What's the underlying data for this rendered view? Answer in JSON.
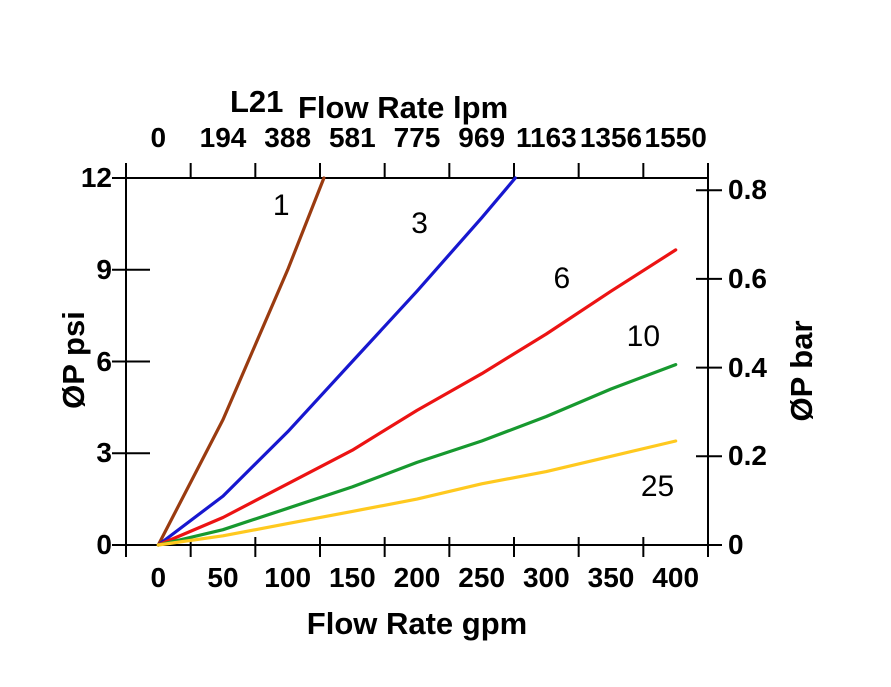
{
  "title": {
    "model": "L21"
  },
  "chart_data": {
    "type": "line",
    "top_axis": {
      "label": "Flow Rate lpm",
      "ticks": [
        "0",
        "194",
        "388",
        "581",
        "775",
        "969",
        "1163",
        "1356",
        "1550"
      ]
    },
    "bottom_axis": {
      "label": "Flow Rate gpm",
      "ticks": [
        "0",
        "50",
        "100",
        "150",
        "200",
        "250",
        "300",
        "350",
        "400"
      ],
      "range_gpm": [
        0,
        400
      ]
    },
    "left_axis": {
      "label": "ØP psi",
      "ticks": [
        "0",
        "3",
        "6",
        "9",
        "12"
      ],
      "range_psi": [
        0,
        12
      ]
    },
    "right_axis": {
      "label": "ØP bar",
      "ticks": [
        "0",
        "0.2",
        "0.4",
        "0.6",
        "0.8"
      ],
      "psi_per_bar": 14.5
    },
    "grid": false,
    "legend": "labels placed on curves",
    "series": [
      {
        "name": "1",
        "color": "#9a3b10",
        "label_at": {
          "gpm": 95,
          "psi": 11.1
        },
        "points_gpm_psi": [
          [
            0,
            0
          ],
          [
            50,
            4.1
          ],
          [
            100,
            9.0
          ],
          [
            128,
            12
          ]
        ]
      },
      {
        "name": "3",
        "color": "#1717cf",
        "label_at": {
          "gpm": 202,
          "psi": 10.5
        },
        "points_gpm_psi": [
          [
            0,
            0
          ],
          [
            50,
            1.6
          ],
          [
            100,
            3.7
          ],
          [
            150,
            6.0
          ],
          [
            200,
            8.3
          ],
          [
            250,
            10.7
          ],
          [
            276,
            12
          ]
        ]
      },
      {
        "name": "6",
        "color": "#ec1313",
        "label_at": {
          "gpm": 312,
          "psi": 8.7
        },
        "points_gpm_psi": [
          [
            0,
            0
          ],
          [
            50,
            0.9
          ],
          [
            100,
            2.0
          ],
          [
            150,
            3.1
          ],
          [
            200,
            4.4
          ],
          [
            250,
            5.6
          ],
          [
            300,
            6.9
          ],
          [
            350,
            8.3
          ],
          [
            400,
            9.65
          ]
        ]
      },
      {
        "name": "10",
        "color": "#17992f",
        "label_at": {
          "gpm": 375,
          "psi": 6.8
        },
        "points_gpm_psi": [
          [
            0,
            0
          ],
          [
            50,
            0.5
          ],
          [
            100,
            1.2
          ],
          [
            150,
            1.9
          ],
          [
            200,
            2.7
          ],
          [
            250,
            3.4
          ],
          [
            300,
            4.2
          ],
          [
            350,
            5.1
          ],
          [
            400,
            5.9
          ]
        ]
      },
      {
        "name": "25",
        "color": "#ffc91f",
        "label_at": {
          "gpm": 386,
          "psi": 1.9
        },
        "points_gpm_psi": [
          [
            0,
            0
          ],
          [
            50,
            0.3
          ],
          [
            100,
            0.7
          ],
          [
            150,
            1.1
          ],
          [
            200,
            1.5
          ],
          [
            250,
            2.0
          ],
          [
            300,
            2.4
          ],
          [
            350,
            2.9
          ],
          [
            400,
            3.4
          ]
        ]
      }
    ]
  }
}
